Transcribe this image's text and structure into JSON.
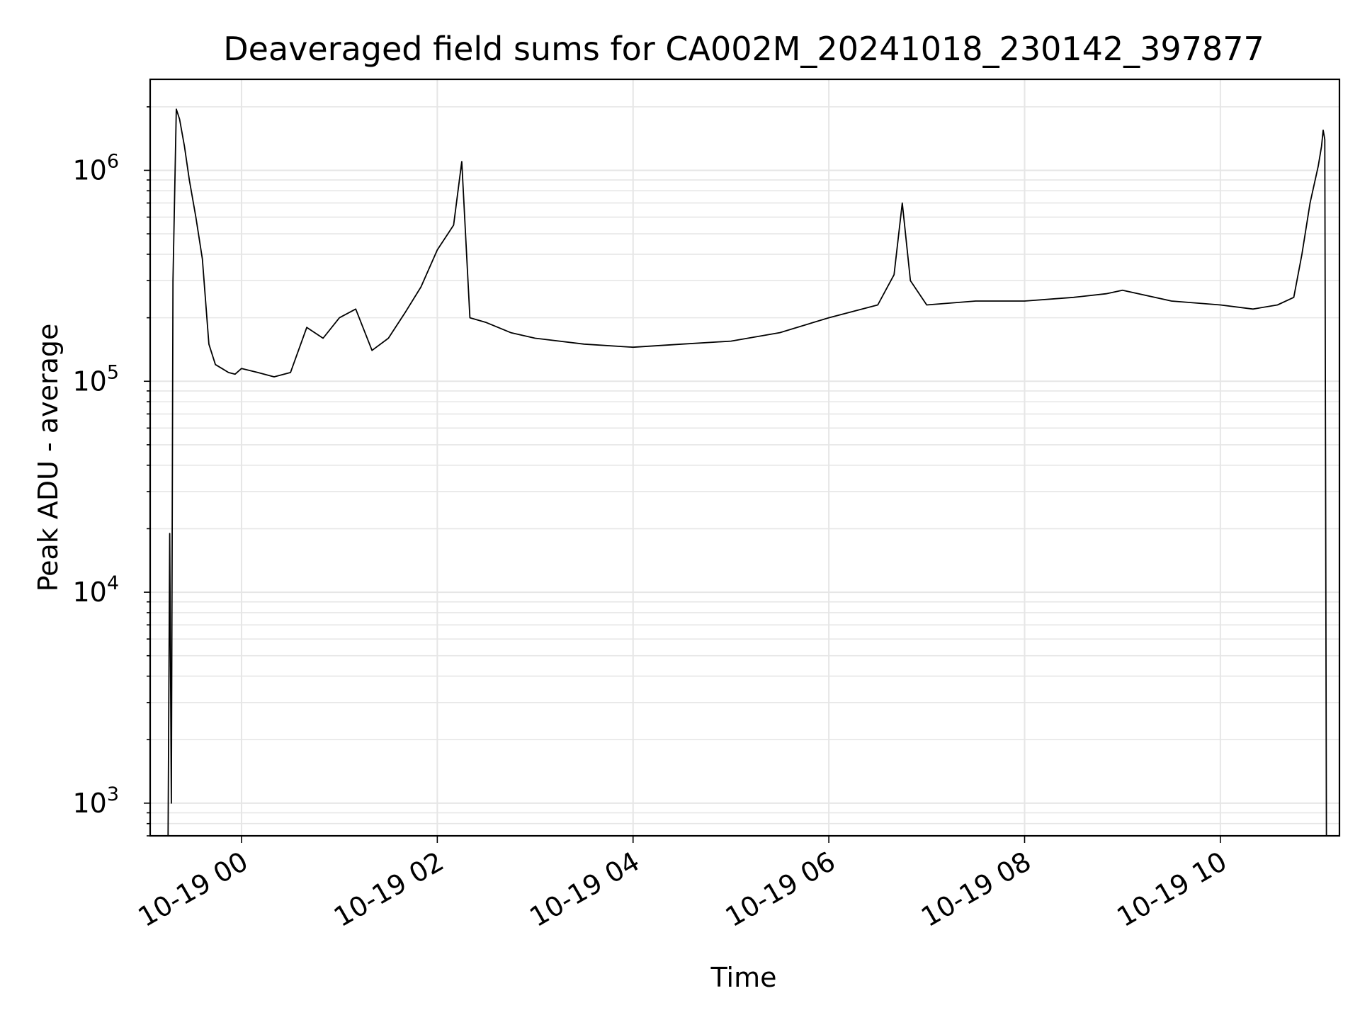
{
  "chart_data": {
    "type": "line",
    "title": "Deaveraged field sums for CA002M_20241018_230142_397877",
    "xlabel": "Time",
    "ylabel": "Peak ADU - average",
    "yscale": "log",
    "ylim": [
      700,
      2700000
    ],
    "xlim": [
      "2024-10-18 23:04",
      "2024-10-19 11:13"
    ],
    "grid": true,
    "line_color": "#000000",
    "x_ticks": [
      {
        "value": "2024-10-19 00:00",
        "label": "10-19 00"
      },
      {
        "value": "2024-10-19 02:00",
        "label": "10-19 02"
      },
      {
        "value": "2024-10-19 04:00",
        "label": "10-19 04"
      },
      {
        "value": "2024-10-19 06:00",
        "label": "10-19 06"
      },
      {
        "value": "2024-10-19 08:00",
        "label": "10-19 08"
      },
      {
        "value": "2024-10-19 10:00",
        "label": "10-19 10"
      }
    ],
    "y_ticks": [
      {
        "value": 1000,
        "base": "10",
        "exp": "3"
      },
      {
        "value": 10000,
        "base": "10",
        "exp": "4"
      },
      {
        "value": 100000,
        "base": "10",
        "exp": "5"
      },
      {
        "value": 1000000,
        "base": "10",
        "exp": "6"
      }
    ],
    "series": [
      {
        "x": [
          "2024-10-18 23:15",
          "2024-10-18 23:16",
          "2024-10-18 23:17",
          "2024-10-18 23:18",
          "2024-10-18 23:20",
          "2024-10-18 23:22",
          "2024-10-18 23:25",
          "2024-10-18 23:28",
          "2024-10-18 23:32",
          "2024-10-18 23:36",
          "2024-10-18 23:40",
          "2024-10-18 23:44",
          "2024-10-18 23:48",
          "2024-10-18 23:52",
          "2024-10-18 23:56",
          "2024-10-19 00:00",
          "2024-10-19 00:10",
          "2024-10-19 00:20",
          "2024-10-19 00:30",
          "2024-10-19 00:40",
          "2024-10-19 00:50",
          "2024-10-19 01:00",
          "2024-10-19 01:10",
          "2024-10-19 01:20",
          "2024-10-19 01:30",
          "2024-10-19 01:40",
          "2024-10-19 01:50",
          "2024-10-19 02:00",
          "2024-10-19 02:10",
          "2024-10-19 02:15",
          "2024-10-19 02:20",
          "2024-10-19 02:30",
          "2024-10-19 02:45",
          "2024-10-19 03:00",
          "2024-10-19 03:30",
          "2024-10-19 04:00",
          "2024-10-19 04:30",
          "2024-10-19 05:00",
          "2024-10-19 05:30",
          "2024-10-19 06:00",
          "2024-10-19 06:30",
          "2024-10-19 06:40",
          "2024-10-19 06:45",
          "2024-10-19 06:50",
          "2024-10-19 07:00",
          "2024-10-19 07:30",
          "2024-10-19 08:00",
          "2024-10-19 08:30",
          "2024-10-19 08:50",
          "2024-10-19 09:00",
          "2024-10-19 09:30",
          "2024-10-19 10:00",
          "2024-10-19 10:20",
          "2024-10-19 10:35",
          "2024-10-19 10:45",
          "2024-10-19 10:50",
          "2024-10-19 10:55",
          "2024-10-19 11:00",
          "2024-10-19 11:02",
          "2024-10-19 11:03",
          "2024-10-19 11:04",
          "2024-10-19 11:05"
        ],
        "y": [
          700,
          19000,
          1000,
          300000,
          1950000,
          1750000,
          1300000,
          900000,
          600000,
          380000,
          150000,
          120000,
          115000,
          110000,
          108000,
          115000,
          110000,
          105000,
          110000,
          180000,
          160000,
          200000,
          220000,
          140000,
          160000,
          210000,
          280000,
          420000,
          550000,
          1100000,
          200000,
          190000,
          170000,
          160000,
          150000,
          145000,
          150000,
          155000,
          170000,
          200000,
          230000,
          320000,
          700000,
          300000,
          230000,
          240000,
          240000,
          250000,
          260000,
          270000,
          240000,
          230000,
          220000,
          230000,
          250000,
          400000,
          700000,
          1050000,
          1300000,
          1550000,
          1400000,
          700
        ]
      }
    ]
  }
}
